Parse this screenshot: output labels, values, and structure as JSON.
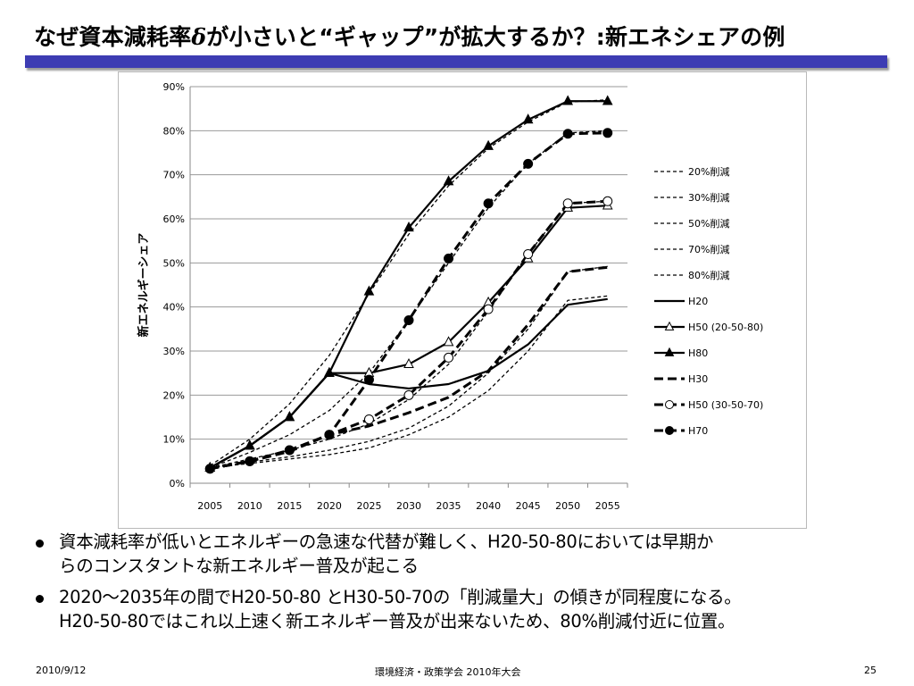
{
  "slide": {
    "title_pre": "なぜ資本減耗率",
    "title_delta": "δ",
    "title_post": "が小さいと“ギャップ”が拡大するか？:新エネシェアの例",
    "bullets": [
      {
        "line1": "資本減耗率が低いとエネルギーの急速な代替が難しく、H20-50-80においては早期か",
        "line2": "らのコンスタントな新エネルギー普及が起こる"
      },
      {
        "line1": "2020～2035年の間でH20-50-80 とH30-50-70の「削減量大」の傾きが同程度になる。",
        "line2": "H20-50-80ではこれ以上速く新エネルギー普及が出来ないため、80%削減付近に位置。"
      }
    ],
    "footer": {
      "date": "2010/9/12",
      "center": "環境経済・政策学会 2010年大会",
      "page": "25"
    }
  },
  "chart_data": {
    "type": "line",
    "title": "",
    "xlabel": "",
    "ylabel": "新エネルギーシェア",
    "ylim": [
      0,
      0.9
    ],
    "yticks": [
      0,
      0.1,
      0.2,
      0.3,
      0.4,
      0.5,
      0.6,
      0.7,
      0.8,
      0.9
    ],
    "ytick_labels": [
      "0%",
      "10%",
      "20%",
      "30%",
      "40%",
      "50%",
      "60%",
      "70%",
      "80%",
      "90%"
    ],
    "categories": [
      "2005",
      "2010",
      "2015",
      "2020",
      "2025",
      "2030",
      "2035",
      "2040",
      "2045",
      "2050",
      "2055"
    ],
    "legend_position": "right",
    "series": [
      {
        "name": "20%削減",
        "style": "thin-dash",
        "marker": "none",
        "values": [
          0.035,
          0.045,
          0.055,
          0.065,
          0.08,
          0.11,
          0.15,
          0.21,
          0.3,
          0.415,
          0.425
        ]
      },
      {
        "name": "30%削減",
        "style": "thin-dash",
        "marker": "none",
        "values": [
          0.035,
          0.048,
          0.06,
          0.075,
          0.095,
          0.125,
          0.175,
          0.25,
          0.35,
          0.48,
          0.492
        ]
      },
      {
        "name": "50%削減",
        "style": "thin-dash",
        "marker": "none",
        "values": [
          0.035,
          0.055,
          0.075,
          0.1,
          0.135,
          0.19,
          0.27,
          0.39,
          0.52,
          0.635,
          0.64
        ]
      },
      {
        "name": "70%削減",
        "style": "thin-dash",
        "marker": "none",
        "values": [
          0.035,
          0.07,
          0.11,
          0.165,
          0.25,
          0.37,
          0.5,
          0.625,
          0.725,
          0.795,
          0.8
        ]
      },
      {
        "name": "80%削減",
        "style": "thin-dash",
        "marker": "none",
        "values": [
          0.04,
          0.1,
          0.18,
          0.29,
          0.43,
          0.565,
          0.675,
          0.76,
          0.82,
          0.865,
          0.87
        ]
      },
      {
        "name": "H20",
        "style": "solid",
        "marker": "none",
        "values": [
          0.035,
          0.085,
          0.15,
          0.25,
          0.225,
          0.215,
          0.225,
          0.255,
          0.315,
          0.405,
          0.418
        ]
      },
      {
        "name": "H50 (20-50-80)",
        "style": "solid",
        "marker": "open-triangle",
        "values": [
          0.035,
          0.085,
          0.15,
          0.25,
          0.25,
          0.27,
          0.32,
          0.41,
          0.51,
          0.625,
          0.63
        ]
      },
      {
        "name": "H80",
        "style": "solid",
        "marker": "filled-triangle",
        "values": [
          0.035,
          0.085,
          0.15,
          0.25,
          0.435,
          0.58,
          0.685,
          0.765,
          0.825,
          0.867,
          0.867
        ]
      },
      {
        "name": "H30",
        "style": "thick-dash",
        "marker": "none",
        "values": [
          0.033,
          0.05,
          0.072,
          0.11,
          0.13,
          0.16,
          0.195,
          0.255,
          0.36,
          0.48,
          0.49
        ]
      },
      {
        "name": "H50 (30-50-70)",
        "style": "thick-dash",
        "marker": "open-circle",
        "values": [
          0.033,
          0.05,
          0.075,
          0.11,
          0.145,
          0.2,
          0.285,
          0.395,
          0.52,
          0.635,
          0.64
        ]
      },
      {
        "name": "H70",
        "style": "thick-dash",
        "marker": "filled-circle",
        "values": [
          0.033,
          0.05,
          0.075,
          0.11,
          0.235,
          0.37,
          0.51,
          0.635,
          0.725,
          0.793,
          0.795
        ]
      }
    ]
  }
}
